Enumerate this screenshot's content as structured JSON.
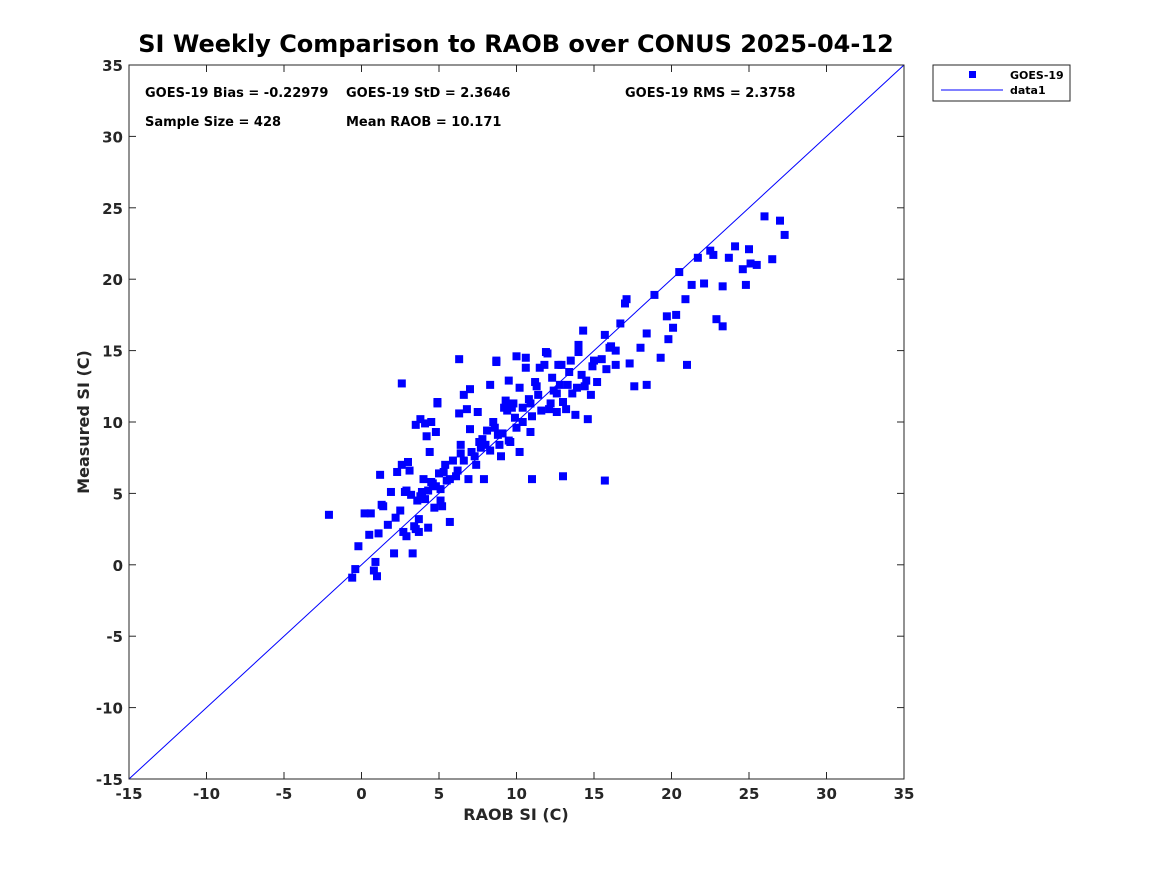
{
  "chart_data": {
    "type": "scatter",
    "title": "SI Weekly Comparison to RAOB over CONUS 2025-04-12",
    "xlabel": "RAOB SI (C)",
    "ylabel": "Measured SI (C)",
    "xlim": [
      -15,
      35
    ],
    "ylim": [
      -15,
      35
    ],
    "xticks": [
      "-15",
      "-10",
      "-5",
      "0",
      "5",
      "10",
      "15",
      "20",
      "25",
      "30",
      "35"
    ],
    "yticks": [
      "-15",
      "-10",
      "-5",
      "0",
      "5",
      "10",
      "15",
      "20",
      "25",
      "30",
      "35"
    ],
    "grid": false,
    "legend_position": "outside-top-right",
    "legend": [
      "GOES-19",
      "data1"
    ],
    "stats": {
      "bias": "GOES-19 Bias = -0.22979",
      "std": "GOES-19 StD = 2.3646",
      "rms": "GOES-19 RMS = 2.3758",
      "sample_size": "Sample Size = 428",
      "mean_raob": "Mean RAOB = 10.171"
    },
    "reference_line": {
      "name": "data1",
      "x": [
        -15,
        35
      ],
      "y": [
        -15,
        35
      ]
    },
    "series": [
      {
        "name": "GOES-19",
        "color": "#0000ff",
        "x": [
          -2.1,
          -0.6,
          -0.4,
          -0.2,
          0.2,
          0.5,
          0.8,
          0.9,
          1.0,
          1.1,
          1.2,
          1.4,
          1.7,
          1.9,
          2.1,
          2.2,
          2.3,
          2.5,
          2.6,
          2.7,
          2.8,
          2.9,
          3.0,
          3.1,
          3.2,
          3.3,
          3.4,
          3.5,
          3.6,
          3.7,
          3.8,
          3.9,
          4.0,
          4.1,
          4.2,
          4.3,
          4.4,
          4.5,
          4.6,
          4.7,
          4.8,
          4.9,
          5.0,
          5.1,
          5.2,
          5.3,
          5.5,
          5.7,
          5.9,
          6.1,
          6.3,
          6.4,
          6.6,
          6.8,
          6.9,
          7.0,
          7.1,
          7.3,
          7.5,
          7.7,
          7.9,
          8.1,
          8.3,
          8.5,
          8.7,
          8.9,
          9.0,
          9.1,
          9.3,
          9.5,
          9.6,
          9.8,
          10.0,
          10.2,
          10.4,
          10.6,
          10.8,
          11.0,
          11.2,
          11.4,
          11.6,
          11.8,
          12.0,
          12.2,
          12.4,
          12.6,
          12.8,
          13.0,
          13.2,
          13.4,
          13.6,
          13.8,
          14.0,
          14.2,
          14.4,
          14.6,
          14.8,
          15.0,
          15.2,
          15.5,
          15.8,
          16.1,
          16.4,
          16.7,
          17.0,
          17.3,
          17.6,
          18.0,
          18.4,
          18.9,
          19.3,
          19.7,
          20.1,
          20.5,
          20.9,
          21.3,
          21.7,
          22.1,
          22.5,
          22.9,
          23.3,
          23.7,
          24.1,
          24.6,
          25.0,
          25.5,
          26.0,
          26.5,
          27.0,
          27.3,
          6.3,
          7.0,
          2.6,
          4.9,
          8.7,
          10.0,
          11.9,
          14.3,
          15.7,
          13.0,
          15.7,
          11.0,
          8.0,
          6.4,
          4.1,
          3.5,
          9.2,
          12.3,
          16.4,
          17.1,
          20.3,
          21.0,
          22.7,
          23.3,
          25.1,
          24.8,
          18.4,
          14.0,
          12.9,
          10.6,
          9.7,
          5.4,
          3.8,
          2.9,
          1.3,
          0.6,
          4.5,
          7.8,
          10.9,
          13.5,
          16.0,
          19.8,
          8.3,
          9.9,
          11.3,
          12.6,
          13.9,
          14.9,
          10.4,
          8.8,
          7.6,
          6.6,
          5.7,
          4.8,
          3.9,
          9.4,
          10.9,
          12.1,
          13.3,
          14.5,
          11.5,
          12.7,
          10.2,
          9.5,
          8.6,
          7.4,
          6.2,
          5.1,
          4.3,
          3.7
        ],
        "y": [
          3.5,
          -0.9,
          -0.3,
          1.3,
          3.6,
          2.1,
          -0.4,
          0.2,
          -0.8,
          2.2,
          6.3,
          4.1,
          2.8,
          5.1,
          0.8,
          3.3,
          6.5,
          3.8,
          7.0,
          2.3,
          5.1,
          2.0,
          7.2,
          6.6,
          4.9,
          0.8,
          2.7,
          9.8,
          4.5,
          3.2,
          10.2,
          5.1,
          6.0,
          4.6,
          9.0,
          2.6,
          7.9,
          10.0,
          5.7,
          4.0,
          9.3,
          11.3,
          6.4,
          5.3,
          4.1,
          6.5,
          5.9,
          3.0,
          7.3,
          6.2,
          10.6,
          8.4,
          11.9,
          10.9,
          6.0,
          9.5,
          7.9,
          7.6,
          10.7,
          8.2,
          6.0,
          9.4,
          12.6,
          10.0,
          14.2,
          8.4,
          7.6,
          9.2,
          11.5,
          12.9,
          8.6,
          11.3,
          9.6,
          12.4,
          10.0,
          14.5,
          11.6,
          10.4,
          12.8,
          11.9,
          10.8,
          14.0,
          14.8,
          11.3,
          12.2,
          10.7,
          12.6,
          11.4,
          10.9,
          13.5,
          12.0,
          10.5,
          14.9,
          13.3,
          12.5,
          10.2,
          11.9,
          14.3,
          12.8,
          14.4,
          13.7,
          15.3,
          14.0,
          16.9,
          18.3,
          14.1,
          12.5,
          15.2,
          16.2,
          18.9,
          14.5,
          17.4,
          16.6,
          20.5,
          18.6,
          19.6,
          21.5,
          19.7,
          22.0,
          17.2,
          19.5,
          21.5,
          22.3,
          20.7,
          22.1,
          21.0,
          24.4,
          21.4,
          24.1,
          23.1,
          14.4,
          12.3,
          12.7,
          11.4,
          14.3,
          14.6,
          14.9,
          16.4,
          16.1,
          6.2,
          5.9,
          6.0,
          8.4,
          7.8,
          9.9,
          2.5,
          11.0,
          13.1,
          15.0,
          18.6,
          17.5,
          14.0,
          21.7,
          16.7,
          21.1,
          19.6,
          12.6,
          15.4,
          14.0,
          13.8,
          11.0,
          7.0,
          4.8,
          5.2,
          4.2,
          3.6,
          5.8,
          8.8,
          11.3,
          14.3,
          15.2,
          15.8,
          8.0,
          10.3,
          12.5,
          12.0,
          12.4,
          13.9,
          11.0,
          9.1,
          8.6,
          7.3,
          6.0,
          5.5,
          4.9,
          10.8,
          9.3,
          10.9,
          12.6,
          12.9,
          13.8,
          14.0,
          7.9,
          8.7,
          9.6,
          7.0,
          6.6,
          4.5,
          5.2,
          2.3
        ]
      }
    ]
  }
}
